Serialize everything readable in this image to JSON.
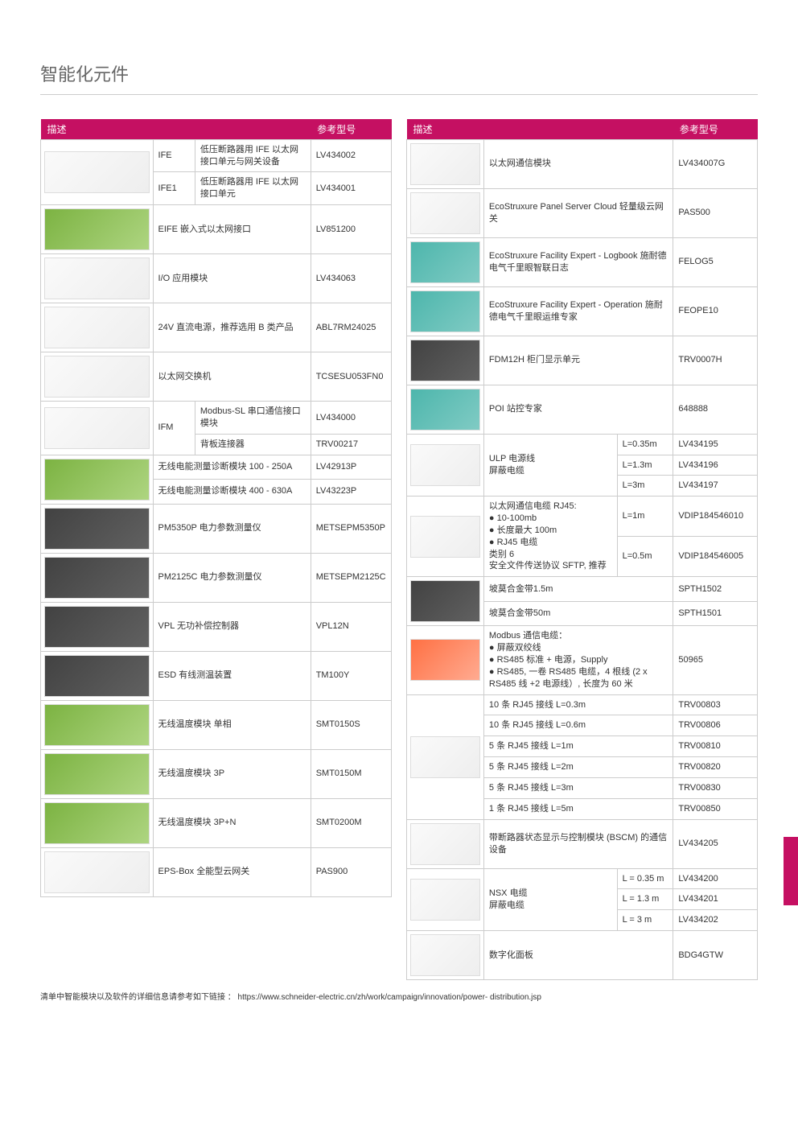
{
  "page_title": "智能化元件",
  "brand_color": "#c51062",
  "headers": {
    "desc": "描述",
    "ref": "参考型号"
  },
  "left_table": {
    "col_widths": [
      "32%",
      "12%",
      "33%",
      "23%"
    ],
    "rows": [
      {
        "img": "white",
        "rowspan_img": 2,
        "code": "IFE",
        "desc": "低压断路器用 IFE 以太网接口单元与网关设备",
        "ref": "LV434002"
      },
      {
        "code": "IFE1",
        "desc": "低压断路器用 IFE 以太网接口单元",
        "ref": "LV434001"
      },
      {
        "img": "green",
        "desc_span": 2,
        "desc": "EIFE 嵌入式以太网接口",
        "ref": "LV851200"
      },
      {
        "img": "white",
        "desc_span": 2,
        "desc": "I/O 应用模块",
        "ref": "LV434063"
      },
      {
        "img": "white",
        "desc_span": 2,
        "desc": "24V 直流电源，推荐选用 B 类产品",
        "ref": "ABL7RM24025"
      },
      {
        "img": "white",
        "desc_span": 2,
        "desc": "以太网交换机",
        "ref": "TCSESU053FN0"
      },
      {
        "img": "white",
        "rowspan_img": 2,
        "rowspan_code": 2,
        "code": "IFM",
        "desc": "Modbus-SL 串口通信接口模块",
        "ref": "LV434000"
      },
      {
        "desc": "背板连接器",
        "ref": "TRV00217"
      },
      {
        "img": "green",
        "rowspan_img": 2,
        "desc_span": 2,
        "desc": "无线电能测量诊断模块 100 - 250A",
        "ref": "LV42913P"
      },
      {
        "desc_span": 2,
        "desc": "无线电能测量诊断模块 400 - 630A",
        "ref": "LV43223P"
      },
      {
        "img": "dark",
        "desc_span": 2,
        "desc": "PM5350P 电力参数测量仪",
        "ref": "METSEPM5350P"
      },
      {
        "img": "dark",
        "desc_span": 2,
        "desc": "PM2125C 电力参数测量仪",
        "ref": "METSEPM2125C"
      },
      {
        "img": "dark",
        "desc_span": 2,
        "desc": "VPL 无功补偿控制器",
        "ref": "VPL12N"
      },
      {
        "img": "dark",
        "desc_span": 2,
        "desc": "ESD 有线测温装置",
        "ref": "TM100Y"
      },
      {
        "img": "green",
        "desc_span": 2,
        "desc": "无线温度模块 单相",
        "ref": "SMT0150S"
      },
      {
        "img": "green",
        "desc_span": 2,
        "desc": "无线温度模块 3P",
        "ref": "SMT0150M"
      },
      {
        "img": "green",
        "desc_span": 2,
        "desc": "无线温度模块 3P+N",
        "ref": "SMT0200M"
      },
      {
        "img": "white",
        "desc_span": 2,
        "desc": "EPS-Box 全能型云网关",
        "ref": "PAS900"
      }
    ]
  },
  "right_table": {
    "col_widths": [
      "22%",
      "38%",
      "16%",
      "24%"
    ],
    "rows": [
      {
        "img": "white",
        "desc_span": 2,
        "desc": "以太网通信模块",
        "ref": "LV434007G"
      },
      {
        "img": "white",
        "desc_span": 2,
        "desc": "EcoStruxure Panel Server Cloud 轻量级云网关",
        "ref": "PAS500"
      },
      {
        "img": "screen",
        "desc_span": 2,
        "desc": "EcoStruxure Facility Expert - Logbook 施耐德电气千里眼智联日志",
        "ref": "FELOG5"
      },
      {
        "img": "screen",
        "desc_span": 2,
        "desc": "EcoStruxure Facility Expert - Operation 施耐德电气千里眼运维专家",
        "ref": "FEOPE10"
      },
      {
        "img": "dark",
        "desc_span": 2,
        "desc": "FDM12H 柜门显示单元",
        "ref": "TRV0007H"
      },
      {
        "img": "screen",
        "desc_span": 2,
        "desc": "POI 站控专家",
        "ref": "648888"
      },
      {
        "img": "white",
        "rowspan_img": 3,
        "rowspan_desc": 3,
        "desc": "ULP 电源线\n屏蔽电缆",
        "sub": "L=0.35m",
        "ref": "LV434195"
      },
      {
        "sub": "L=1.3m",
        "ref": "LV434196"
      },
      {
        "sub": "L=3m",
        "ref": "LV434197"
      },
      {
        "img": "white",
        "rowspan_img": 2,
        "rowspan_desc": 2,
        "desc": "以太网通信电缆 RJ45:\n● 10-100mb\n● 长度最大 100m\n● RJ45 电缆\n类别 6\n安全文件传送协议 SFTP, 推荐",
        "sub": "L=1m",
        "ref": "VDIP184546010"
      },
      {
        "sub": "L=0.5m",
        "ref": "VDIP184546005"
      },
      {
        "img": "dark",
        "rowspan_img": 2,
        "desc_span": 2,
        "desc": "坡莫合金带1.5m",
        "ref": "SPTH1502"
      },
      {
        "desc_span": 2,
        "desc": "坡莫合金带50m",
        "ref": "SPTH1501"
      },
      {
        "img": "orange",
        "desc_span": 2,
        "desc": "Modbus 通信电缆：\n● 屏蔽双绞线\n● RS485 标准 + 电源，Supply\n● RS485, 一卷 RS485 电缆，4 根线 (2 x RS485 线 +2 电源线）, 长度为 60 米",
        "ref": "50965"
      },
      {
        "img": "white",
        "rowspan_img": 6,
        "desc_span": 2,
        "desc": "10 条 RJ45 接线 L=0.3m",
        "ref": "TRV00803"
      },
      {
        "desc_span": 2,
        "desc": "10 条 RJ45 接线 L=0.6m",
        "ref": "TRV00806"
      },
      {
        "desc_span": 2,
        "desc": "5 条 RJ45 接线 L=1m",
        "ref": "TRV00810"
      },
      {
        "desc_span": 2,
        "desc": "5 条 RJ45 接线 L=2m",
        "ref": "TRV00820"
      },
      {
        "desc_span": 2,
        "desc": "5 条 RJ45 接线 L=3m",
        "ref": "TRV00830"
      },
      {
        "desc_span": 2,
        "desc": "1 条 RJ45 接线 L=5m",
        "ref": "TRV00850"
      },
      {
        "img": "white",
        "desc_span": 2,
        "desc": "带断路器状态显示与控制模块 (BSCM) 的通信设备",
        "ref": "LV434205"
      },
      {
        "img": "white",
        "rowspan_img": 3,
        "rowspan_desc": 3,
        "desc": "NSX 电缆\n屏蔽电缆",
        "sub": "L = 0.35 m",
        "ref": "LV434200"
      },
      {
        "sub": "L = 1.3 m",
        "ref": "LV434201"
      },
      {
        "sub": "L = 3 m",
        "ref": "LV434202"
      },
      {
        "img": "white",
        "desc_span": 2,
        "desc": "数字化面板",
        "ref": "BDG4GTW"
      }
    ]
  },
  "footer_note": "清单中智能模块以及软件的详细信息请参考如下链接 ： https://www.schneider-electric.cn/zh/work/campaign/innovation/power- distribution.jsp"
}
